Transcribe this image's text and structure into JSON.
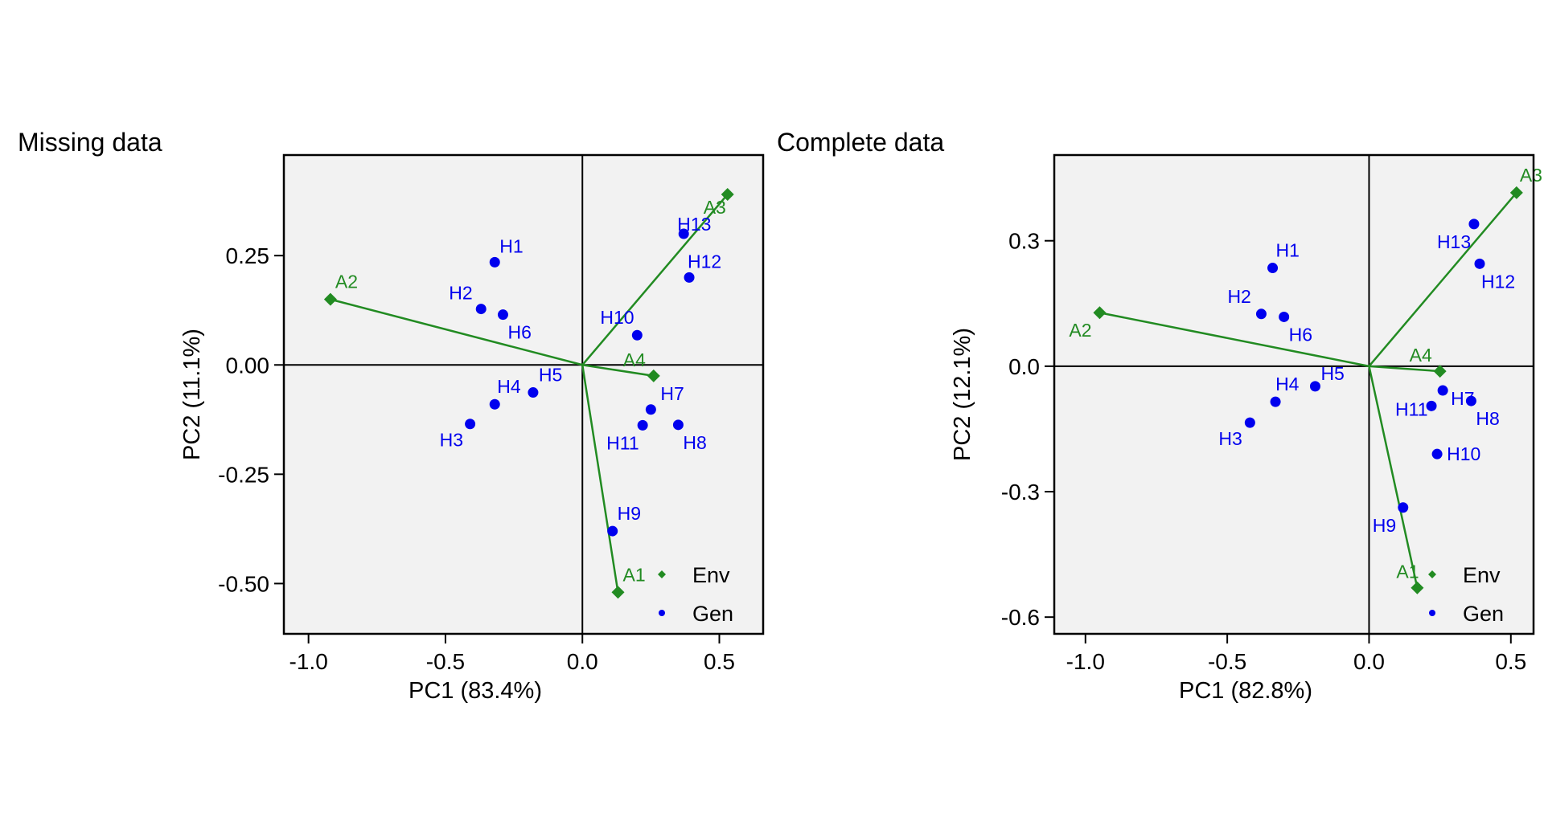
{
  "colors": {
    "env": "#228B22",
    "gen": "#0000EE",
    "panel_bg": "#F2F2F2",
    "axis": "#000000"
  },
  "chart_data": [
    {
      "type": "scatter",
      "title": "Missing data",
      "xlabel": "PC1 (83.4%)",
      "ylabel": "PC2 (11.1%)",
      "xlim": [
        -1.09,
        0.66
      ],
      "ylim": [
        -0.615,
        0.48
      ],
      "xticks": [
        -1.0,
        -0.5,
        0.0,
        0.5
      ],
      "xtick_labels": [
        "-1.0",
        "-0.5",
        "0.0",
        "0.5"
      ],
      "yticks": [
        0.25,
        0.0,
        -0.25,
        -0.5
      ],
      "ytick_labels": [
        "0.25",
        "0.00",
        "-0.25",
        "-0.50"
      ],
      "reference_lines": {
        "x": 0,
        "y": 0
      },
      "legend": {
        "position": "bottom-right",
        "entries": [
          "Env",
          "Gen"
        ]
      },
      "series": [
        {
          "name": "Env",
          "marker": "diamond",
          "vectors_from_origin": true,
          "points": [
            {
              "label": "A1",
              "x": 0.13,
              "y": -0.52
            },
            {
              "label": "A2",
              "x": -0.92,
              "y": 0.15
            },
            {
              "label": "A3",
              "x": 0.53,
              "y": 0.39
            },
            {
              "label": "A4",
              "x": 0.26,
              "y": -0.025
            }
          ]
        },
        {
          "name": "Gen",
          "marker": "circle",
          "points": [
            {
              "label": "H1",
              "x": -0.32,
              "y": 0.235
            },
            {
              "label": "H2",
              "x": -0.37,
              "y": 0.128
            },
            {
              "label": "H3",
              "x": -0.41,
              "y": -0.135
            },
            {
              "label": "H4",
              "x": -0.32,
              "y": -0.09
            },
            {
              "label": "H5",
              "x": -0.18,
              "y": -0.063
            },
            {
              "label": "H6",
              "x": -0.29,
              "y": 0.115
            },
            {
              "label": "H7",
              "x": 0.25,
              "y": -0.102
            },
            {
              "label": "H8",
              "x": 0.35,
              "y": -0.137
            },
            {
              "label": "H9",
              "x": 0.11,
              "y": -0.38
            },
            {
              "label": "H10",
              "x": 0.2,
              "y": 0.068
            },
            {
              "label": "H11",
              "x": 0.22,
              "y": -0.138
            },
            {
              "label": "H12",
              "x": 0.39,
              "y": 0.2
            },
            {
              "label": "H13",
              "x": 0.37,
              "y": 0.3
            }
          ]
        }
      ]
    },
    {
      "type": "scatter",
      "title": "Complete data",
      "xlabel": "PC1 (82.8%)",
      "ylabel": "PC2 (12.1%)",
      "xlim": [
        -1.11,
        0.58
      ],
      "ylim": [
        -0.64,
        0.505
      ],
      "xticks": [
        -1.0,
        -0.5,
        0.0,
        0.5
      ],
      "xtick_labels": [
        "-1.0",
        "-0.5",
        "0.0",
        "0.5"
      ],
      "yticks": [
        0.3,
        0.0,
        -0.3,
        -0.6
      ],
      "ytick_labels": [
        "0.3",
        "0.0",
        "-0.3",
        "-0.6"
      ],
      "reference_lines": {
        "x": 0,
        "y": 0
      },
      "legend": {
        "position": "bottom-right",
        "entries": [
          "Env",
          "Gen"
        ]
      },
      "series": [
        {
          "name": "Env",
          "marker": "diamond",
          "vectors_from_origin": true,
          "points": [
            {
              "label": "A1",
              "x": 0.17,
              "y": -0.53
            },
            {
              "label": "A2",
              "x": -0.95,
              "y": 0.128
            },
            {
              "label": "A3",
              "x": 0.52,
              "y": 0.415
            },
            {
              "label": "A4",
              "x": 0.25,
              "y": -0.012
            }
          ]
        },
        {
          "name": "Gen",
          "marker": "circle",
          "points": [
            {
              "label": "H1",
              "x": -0.34,
              "y": 0.235
            },
            {
              "label": "H2",
              "x": -0.38,
              "y": 0.125
            },
            {
              "label": "H3",
              "x": -0.42,
              "y": -0.135
            },
            {
              "label": "H4",
              "x": -0.33,
              "y": -0.085
            },
            {
              "label": "H5",
              "x": -0.19,
              "y": -0.048
            },
            {
              "label": "H6",
              "x": -0.3,
              "y": 0.118
            },
            {
              "label": "H7",
              "x": 0.26,
              "y": -0.058
            },
            {
              "label": "H8",
              "x": 0.36,
              "y": -0.083
            },
            {
              "label": "H9",
              "x": 0.12,
              "y": -0.338
            },
            {
              "label": "H10",
              "x": 0.24,
              "y": -0.21
            },
            {
              "label": "H11",
              "x": 0.22,
              "y": -0.095
            },
            {
              "label": "H12",
              "x": 0.39,
              "y": 0.245
            },
            {
              "label": "H13",
              "x": 0.37,
              "y": 0.34
            }
          ]
        }
      ]
    }
  ]
}
